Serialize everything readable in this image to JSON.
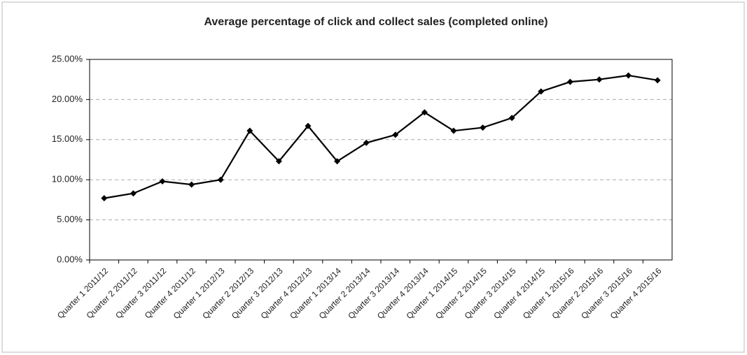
{
  "chart_data": {
    "type": "line",
    "title": "Average percentage of click and collect sales (completed online)",
    "categories": [
      "Quarter 1 2011/12",
      "Quarter 2 2011/12",
      "Quarter 3 2011/12",
      "Quarter 4 2011/12",
      "Quarter 1 2012/13",
      "Quarter 2 2012/13",
      "Quarter 3 2012/13",
      "Quarter 4 2012/13",
      "Quarter 1 2013/14",
      "Quarter 2 2013/14",
      "Quarter 3 2013/14",
      "Quarter 4 2013/14",
      "Quarter 1 2014/15",
      "Quarter 2 2014/15",
      "Quarter 3 2014/15",
      "Quarter 4 2014/15",
      "Quarter 1 2015/16",
      "Quarter 2 2015/16",
      "Quarter 3 2015/16",
      "Quarter 4 2015/16"
    ],
    "values": [
      7.7,
      8.3,
      9.8,
      9.4,
      10.0,
      16.1,
      12.3,
      16.7,
      12.3,
      14.6,
      15.6,
      18.4,
      16.1,
      16.5,
      17.7,
      21.0,
      22.2,
      22.5,
      23.0,
      22.4
    ],
    "color": "#000000",
    "ylim": [
      0,
      25
    ],
    "yticks": [
      {
        "value": 0,
        "label": "0.00%"
      },
      {
        "value": 5,
        "label": "5.00%"
      },
      {
        "value": 10,
        "label": "10.00%"
      },
      {
        "value": 15,
        "label": "15.00%"
      },
      {
        "value": 20,
        "label": "20.00%"
      },
      {
        "value": 25,
        "label": "25.00%"
      }
    ],
    "grid": true
  }
}
